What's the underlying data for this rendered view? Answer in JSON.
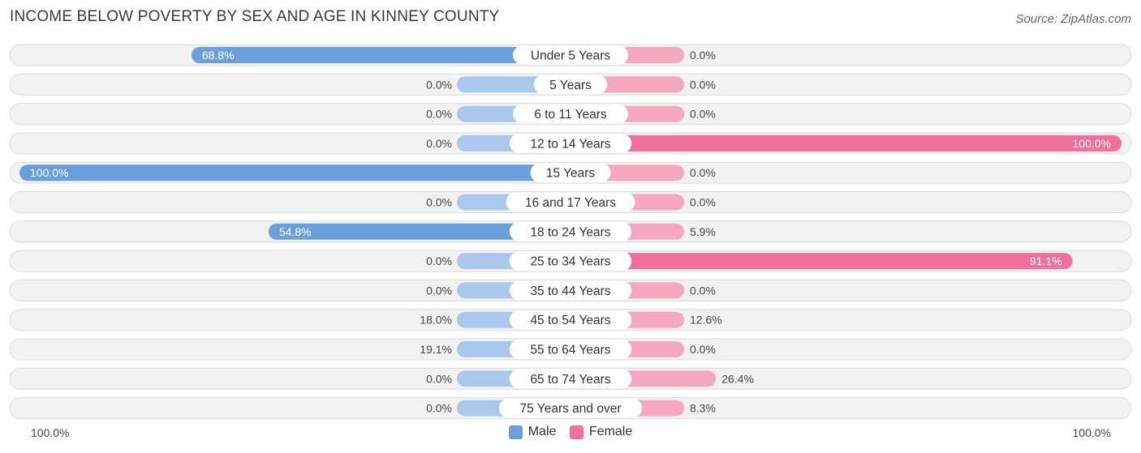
{
  "title": "INCOME BELOW POVERTY BY SEX AND AGE IN KINNEY COUNTY",
  "source": "Source: ZipAtlas.com",
  "axis": {
    "left_label": "100.0%",
    "right_label": "100.0%"
  },
  "legend": {
    "male_label": "Male",
    "female_label": "Female"
  },
  "colors": {
    "male_strong": "#6a9fdc",
    "male_light": "#aac8ec",
    "female_strong": "#f07099",
    "female_light": "#f5a8c0",
    "row_bg": "#f2f2f2",
    "row_border": "#dcdcdc"
  },
  "chart_data": {
    "type": "bar",
    "orientation": "horizontal-diverging",
    "title": "INCOME BELOW POVERTY BY SEX AND AGE IN KINNEY COUNTY",
    "xlim": [
      -100,
      100
    ],
    "categories": [
      "Under 5 Years",
      "5 Years",
      "6 to 11 Years",
      "12 to 14 Years",
      "15 Years",
      "16 and 17 Years",
      "18 to 24 Years",
      "25 to 34 Years",
      "35 to 44 Years",
      "45 to 54 Years",
      "55 to 64 Years",
      "65 to 74 Years",
      "75 Years and over"
    ],
    "series": [
      {
        "name": "Male",
        "values": [
          68.8,
          0.0,
          0.0,
          0.0,
          100.0,
          0.0,
          54.8,
          0.0,
          0.0,
          18.0,
          19.1,
          0.0,
          0.0
        ],
        "labels": [
          "68.8%",
          "0.0%",
          "0.0%",
          "0.0%",
          "100.0%",
          "0.0%",
          "54.8%",
          "0.0%",
          "0.0%",
          "18.0%",
          "19.1%",
          "0.0%",
          "0.0%"
        ]
      },
      {
        "name": "Female",
        "values": [
          0.0,
          0.0,
          0.0,
          100.0,
          0.0,
          0.0,
          5.9,
          91.1,
          0.0,
          12.6,
          0.0,
          26.4,
          8.3
        ],
        "labels": [
          "0.0%",
          "0.0%",
          "0.0%",
          "100.0%",
          "0.0%",
          "0.0%",
          "5.9%",
          "91.1%",
          "0.0%",
          "12.6%",
          "0.0%",
          "26.4%",
          "8.3%"
        ]
      }
    ],
    "legend_position": "bottom-center",
    "grid": false
  }
}
